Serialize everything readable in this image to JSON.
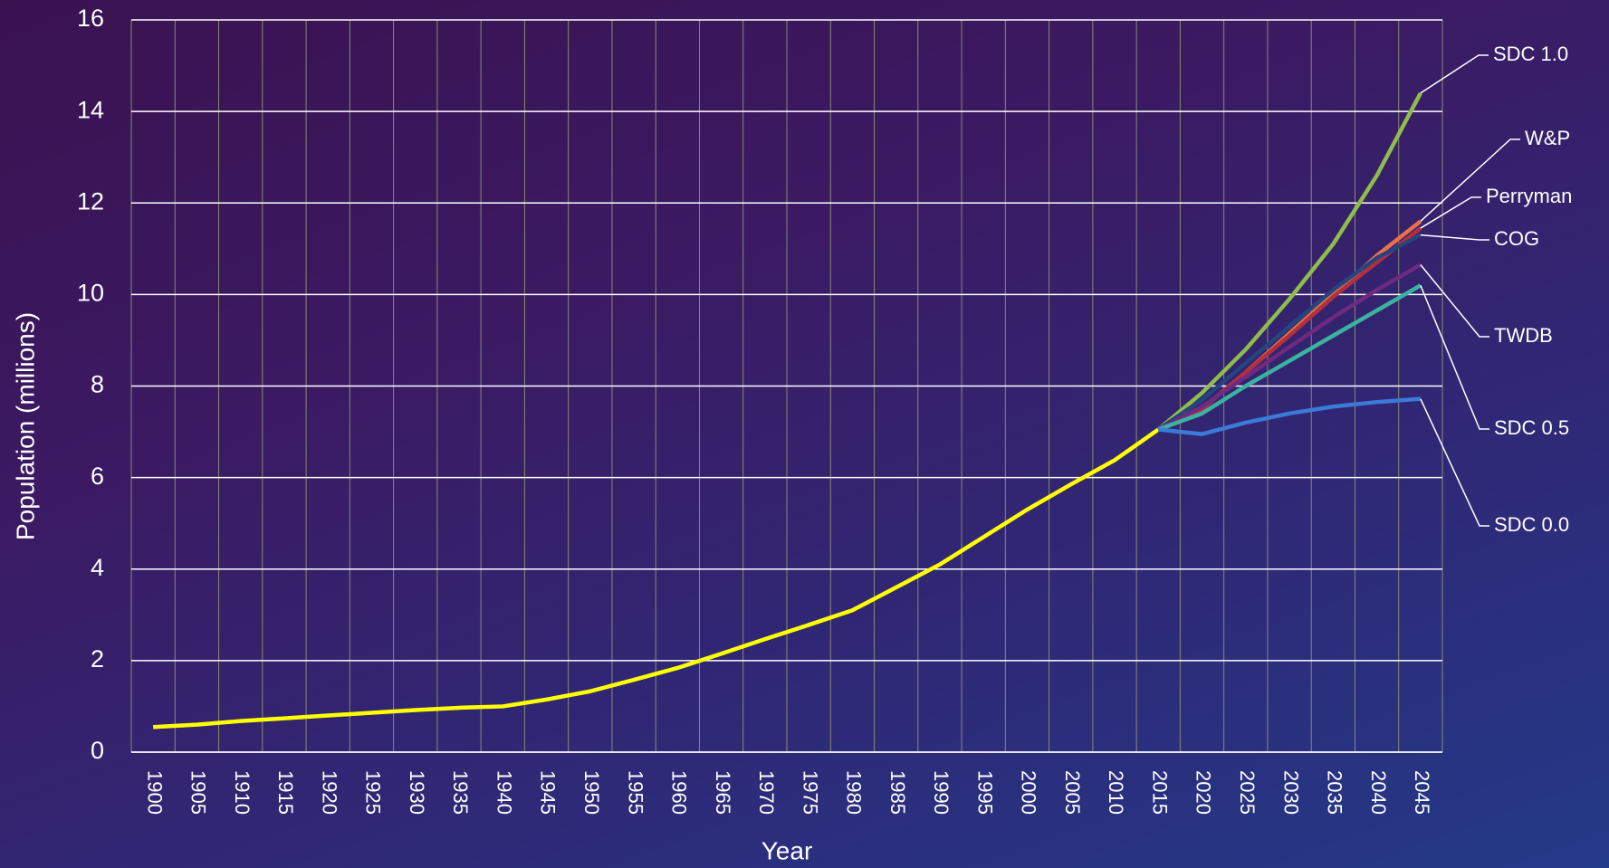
{
  "chart_data": {
    "type": "line",
    "y_label": "Population (millions)",
    "x_label": "Year",
    "categories": [
      "1900",
      "1905",
      "1910",
      "1915",
      "1920",
      "1925",
      "1930",
      "1935",
      "1940",
      "1945",
      "1950",
      "1955",
      "1960",
      "1965",
      "1970",
      "1975",
      "1980",
      "1985",
      "1990",
      "1995",
      "2000",
      "2005",
      "2010",
      "2015",
      "2020",
      "2025",
      "2030",
      "2035",
      "2040",
      "2045"
    ],
    "ylim": [
      0,
      16
    ],
    "yticks": [
      0,
      2,
      4,
      6,
      8,
      10,
      12,
      14,
      16
    ],
    "grid": true,
    "series": [
      {
        "color": "#ffff00",
        "values": [
          0.55,
          0.6,
          0.68,
          0.74,
          0.8,
          0.86,
          0.92,
          0.97,
          1.0,
          1.15,
          1.33,
          1.58,
          1.84,
          2.15,
          2.47,
          2.78,
          3.1,
          3.6,
          4.1,
          4.7,
          5.3,
          5.85,
          6.38,
          7.05,
          null,
          null,
          null,
          null,
          null,
          null
        ]
      },
      {
        "name": "SDC 1.0",
        "color": "#8fbc4a",
        "values": [
          null,
          null,
          null,
          null,
          null,
          null,
          null,
          null,
          null,
          null,
          null,
          null,
          null,
          null,
          null,
          null,
          null,
          null,
          null,
          null,
          null,
          null,
          null,
          7.05,
          7.85,
          8.8,
          9.9,
          11.1,
          12.6,
          14.4
        ]
      },
      {
        "name": "W&P",
        "color": "#e8704a",
        "values": [
          null,
          null,
          null,
          null,
          null,
          null,
          null,
          null,
          null,
          null,
          null,
          null,
          null,
          null,
          null,
          null,
          null,
          null,
          null,
          null,
          null,
          null,
          null,
          7.05,
          7.5,
          8.3,
          9.15,
          10.0,
          10.85,
          11.6
        ]
      },
      {
        "name": "Perryman",
        "color": "#b0303e",
        "values": [
          null,
          null,
          null,
          null,
          null,
          null,
          null,
          null,
          null,
          null,
          null,
          null,
          null,
          null,
          null,
          null,
          null,
          null,
          null,
          null,
          null,
          null,
          null,
          7.05,
          7.5,
          8.3,
          9.1,
          9.95,
          10.7,
          11.45
        ]
      },
      {
        "name": "COG",
        "color": "#24457e",
        "values": [
          null,
          null,
          null,
          null,
          null,
          null,
          null,
          null,
          null,
          null,
          null,
          null,
          null,
          null,
          null,
          null,
          null,
          null,
          null,
          null,
          null,
          null,
          null,
          7.05,
          7.7,
          8.5,
          9.3,
          10.1,
          10.8,
          11.3
        ]
      },
      {
        "name": "TWDB",
        "color": "#6e2a80",
        "values": [
          null,
          null,
          null,
          null,
          null,
          null,
          null,
          null,
          null,
          null,
          null,
          null,
          null,
          null,
          null,
          null,
          null,
          null,
          null,
          null,
          null,
          null,
          null,
          7.05,
          7.55,
          8.2,
          8.85,
          9.5,
          10.1,
          10.65
        ]
      },
      {
        "name": "SDC 0.5",
        "color": "#3bb3a0",
        "values": [
          null,
          null,
          null,
          null,
          null,
          null,
          null,
          null,
          null,
          null,
          null,
          null,
          null,
          null,
          null,
          null,
          null,
          null,
          null,
          null,
          null,
          null,
          null,
          7.05,
          7.4,
          8.0,
          8.55,
          9.1,
          9.65,
          10.2
        ]
      },
      {
        "name": "SDC 0.0",
        "color": "#3a7ad8",
        "values": [
          null,
          null,
          null,
          null,
          null,
          null,
          null,
          null,
          null,
          null,
          null,
          null,
          null,
          null,
          null,
          null,
          null,
          null,
          null,
          null,
          null,
          null,
          null,
          7.05,
          6.95,
          7.2,
          7.4,
          7.55,
          7.65,
          7.72
        ]
      }
    ]
  }
}
